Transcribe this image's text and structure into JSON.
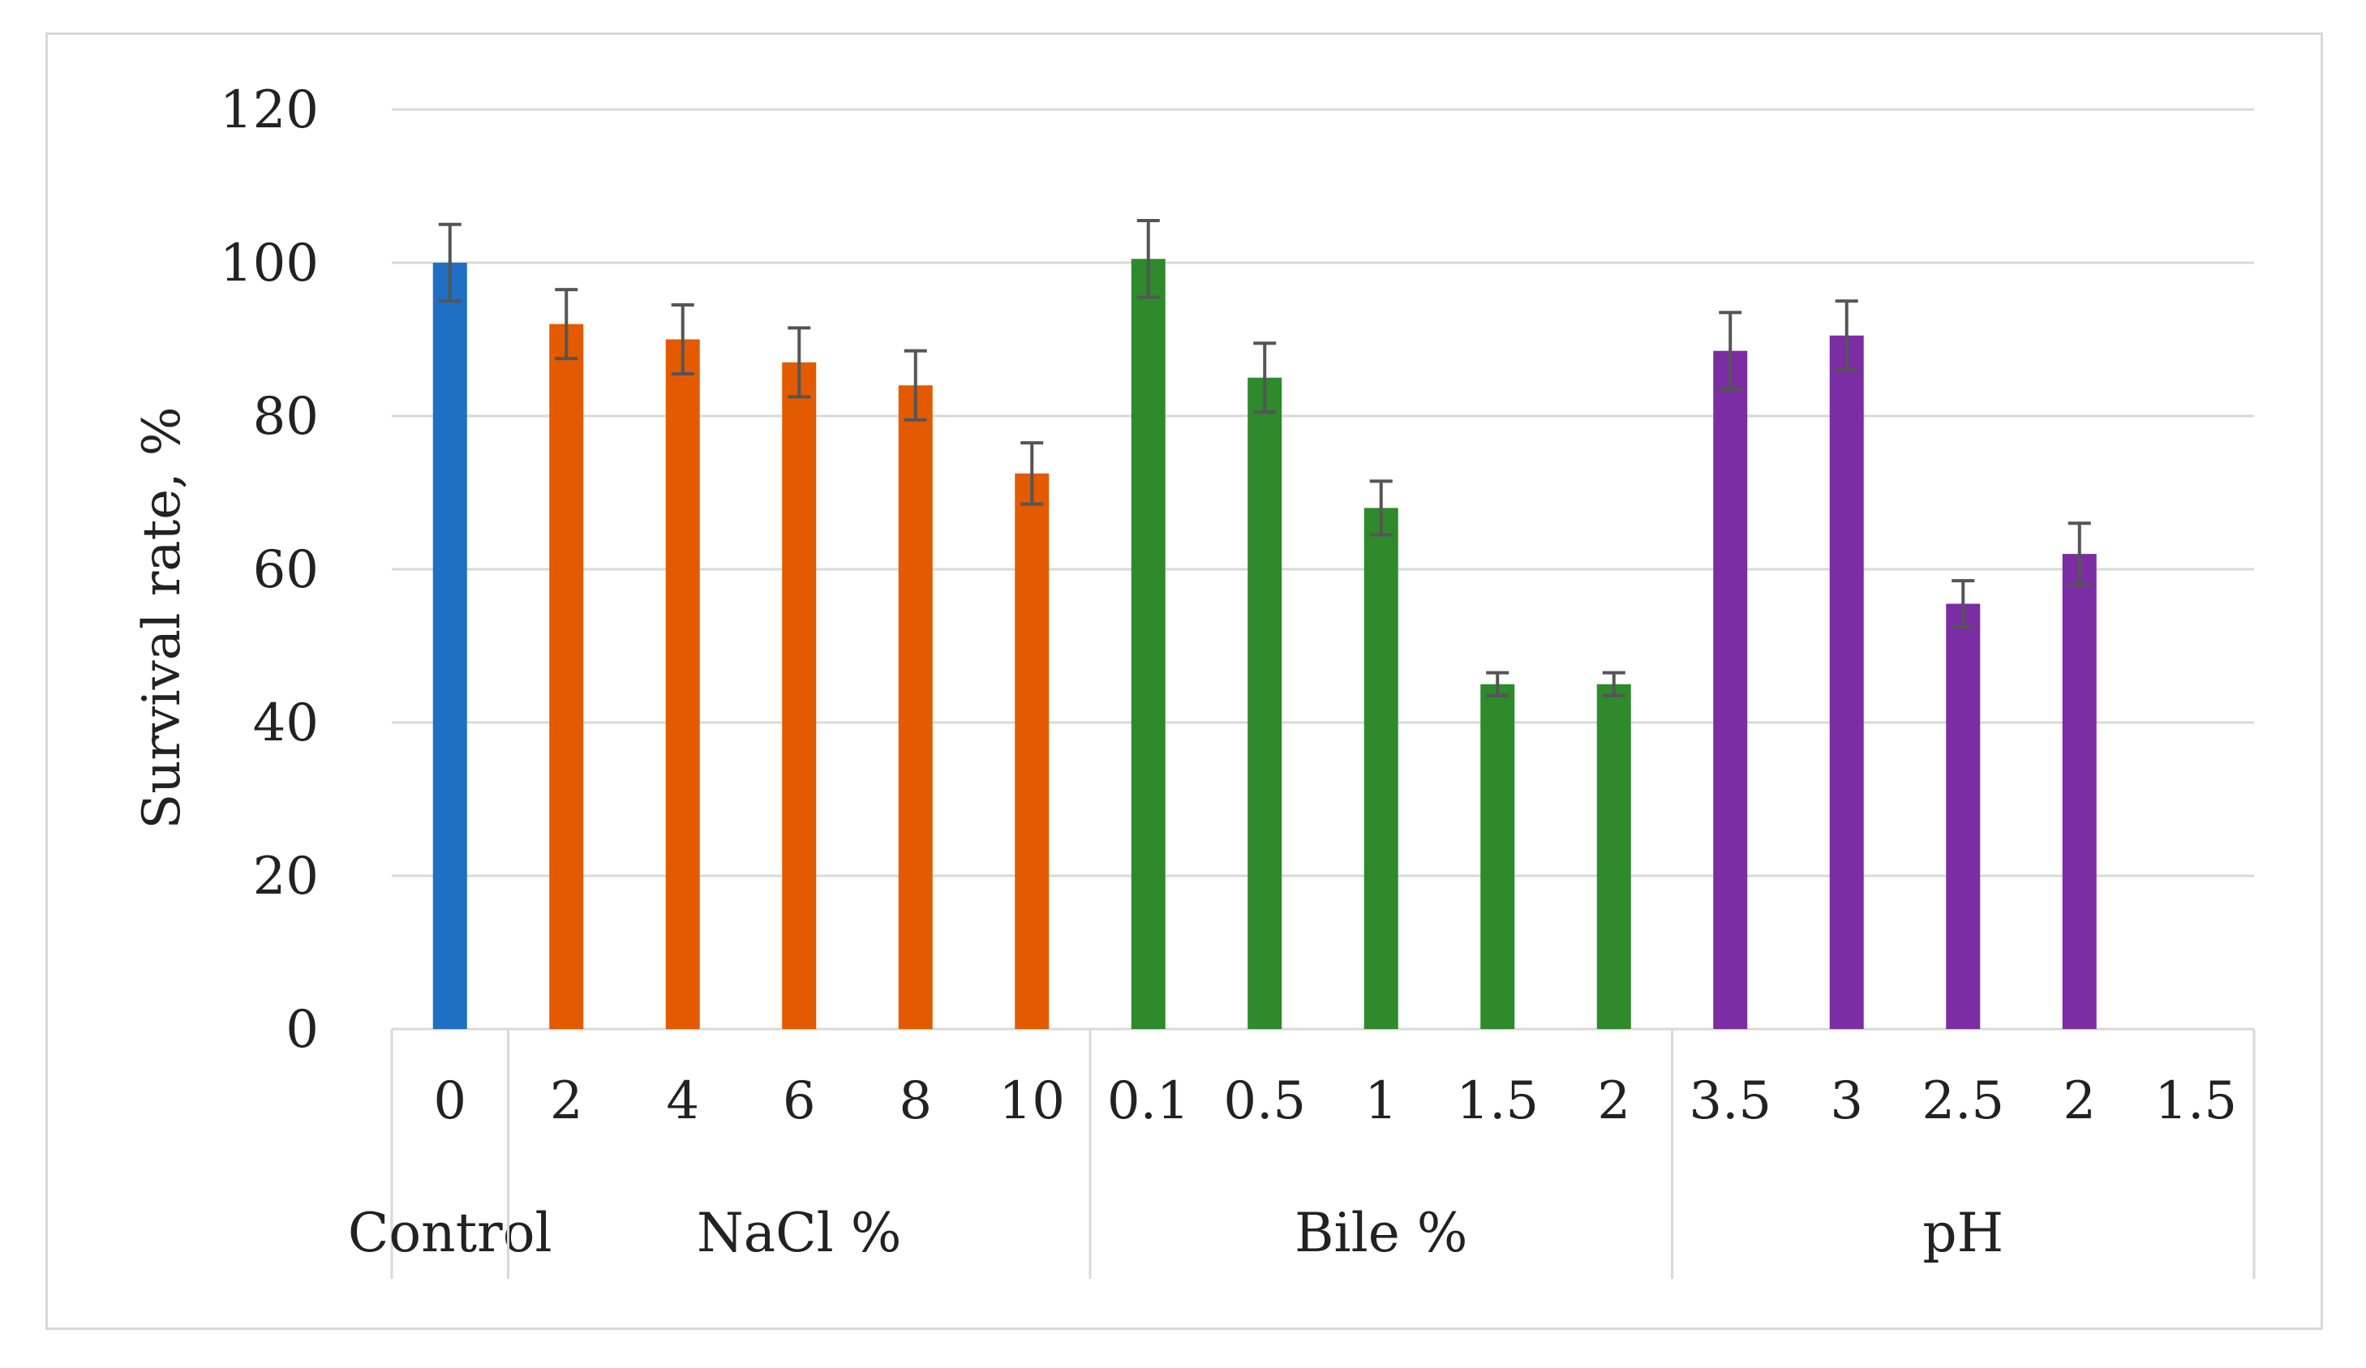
{
  "chart_data": {
    "type": "bar",
    "title": "",
    "xlabel": "",
    "ylabel": "Survival rate, %",
    "ylim": [
      0,
      120
    ],
    "yticks": [
      0,
      20,
      40,
      60,
      80,
      100,
      120
    ],
    "grid": true,
    "legend": "none",
    "groups": [
      {
        "name": "Control",
        "color": "#1F6FC5",
        "categories": [
          "0"
        ],
        "values": [
          100
        ],
        "errors": [
          5
        ]
      },
      {
        "name": "NaCl %",
        "color": "#E35A00",
        "categories": [
          "2",
          "4",
          "6",
          "8",
          "10"
        ],
        "values": [
          92,
          90,
          87,
          84,
          72.5
        ],
        "errors": [
          4.5,
          4.5,
          4.5,
          4.5,
          4
        ]
      },
      {
        "name": "Bile %",
        "color": "#2E8A2A",
        "categories": [
          "0.1",
          "0.5",
          "1",
          "1.5",
          "2"
        ],
        "values": [
          100.5,
          85,
          68,
          45,
          45
        ],
        "errors": [
          5,
          4.5,
          3.5,
          1.5,
          1.5
        ]
      },
      {
        "name": "pH",
        "color": "#7B2DA3",
        "categories": [
          "3.5",
          "3",
          "2.5",
          "2",
          "1.5"
        ],
        "values": [
          88.5,
          90.5,
          55.5,
          62,
          null
        ],
        "errors": [
          5,
          4.5,
          3,
          4,
          null
        ]
      }
    ],
    "colors": {
      "grid": "#d9d9d9",
      "error_bar": "#555555",
      "axis_text": "#222222"
    }
  }
}
